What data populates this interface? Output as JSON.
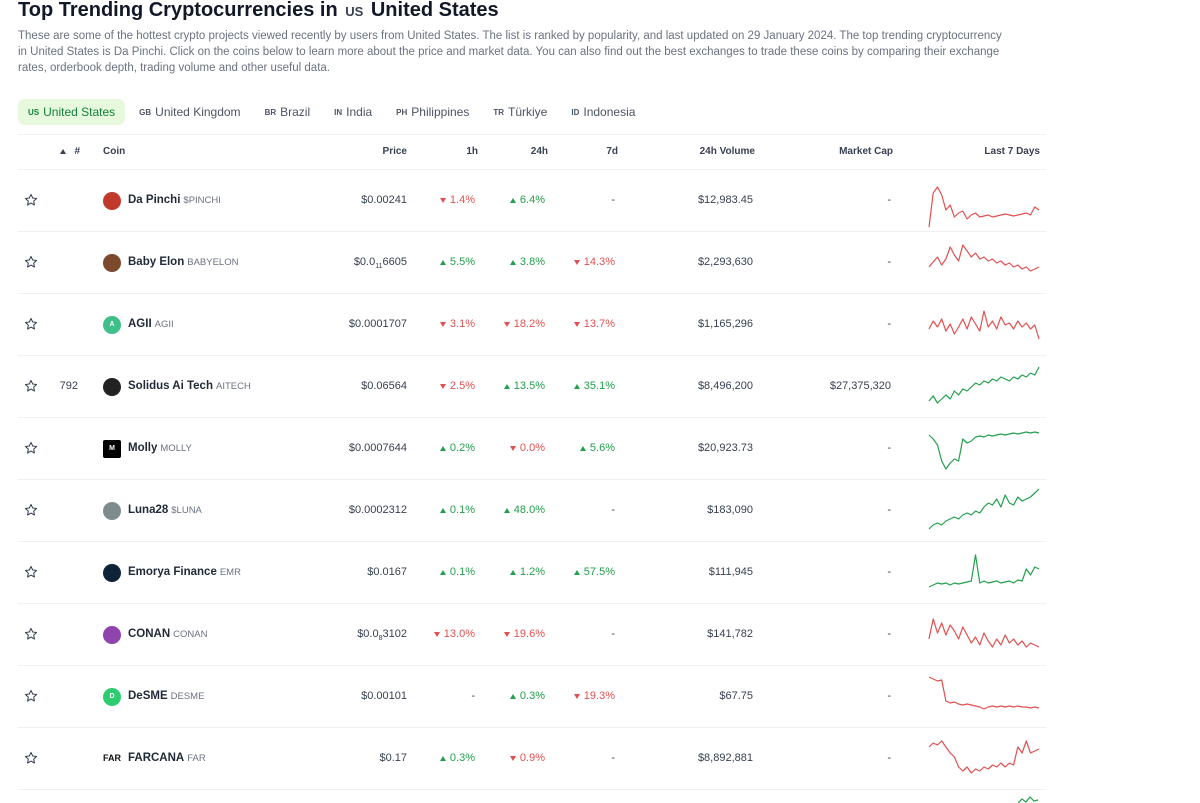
{
  "header": {
    "title_prefix": "Top Trending Cryptocurrencies in",
    "title_flag": "US",
    "title_country": "United States",
    "description": "These are some of the hottest crypto projects viewed recently by users from United States. The list is ranked by popularity, and last updated on 29 January 2024. The top trending cryptocurrency in United States is Da Pinchi. Click on the coins below to learn more about the price and market data. You can also find out the best exchanges to trade these coins by comparing their exchange rates, orderbook depth, trading volume and other useful data."
  },
  "tabs": [
    {
      "code": "US",
      "label": "United States",
      "active": true
    },
    {
      "code": "GB",
      "label": "United Kingdom",
      "active": false
    },
    {
      "code": "BR",
      "label": "Brazil",
      "active": false
    },
    {
      "code": "IN",
      "label": "India",
      "active": false
    },
    {
      "code": "PH",
      "label": "Philippines",
      "active": false
    },
    {
      "code": "TR",
      "label": "Türkiye",
      "active": false
    },
    {
      "code": "ID",
      "label": "Indonesia",
      "active": false
    }
  ],
  "columns": {
    "rank": "#",
    "coin": "Coin",
    "price": "Price",
    "h1": "1h",
    "h24": "24h",
    "d7": "7d",
    "volume": "24h Volume",
    "mcap": "Market Cap",
    "spark": "Last 7 Days"
  },
  "colors": {
    "positive": "#22a04b",
    "negative": "#e25050",
    "active_tab_bg": "#e6f9dc"
  },
  "rows": [
    {
      "rank": "",
      "name": "Da Pinchi",
      "symbol": "$PINCHI",
      "logo_color": "#c0392b",
      "logo_text": "",
      "price": "$0.00241",
      "h1": "1.4%",
      "h1_dir": "neg",
      "h24": "6.4%",
      "h24_dir": "pos",
      "d7": "-",
      "d7_dir": "none",
      "volume": "$12,983.45",
      "mcap": "-",
      "trend": "neg",
      "spark": [
        52,
        18,
        12,
        20,
        35,
        30,
        42,
        38,
        36,
        44,
        40,
        38,
        42,
        41,
        40,
        42,
        41,
        40,
        39,
        40,
        41,
        40,
        39,
        38,
        40,
        32,
        35
      ]
    },
    {
      "rank": "",
      "name": "Baby Elon",
      "symbol": "BABYELON",
      "logo_color": "#7a4a2a",
      "logo_text": "",
      "price_parts": [
        "$0.0",
        "11",
        "6605"
      ],
      "h1": "5.5%",
      "h1_dir": "pos",
      "h24": "3.8%",
      "h24_dir": "pos",
      "d7": "14.3%",
      "d7_dir": "neg",
      "volume": "$2,293,630",
      "mcap": "-",
      "trend": "neg",
      "spark": [
        30,
        25,
        20,
        28,
        22,
        10,
        18,
        24,
        8,
        14,
        20,
        16,
        22,
        20,
        24,
        22,
        26,
        24,
        28,
        26,
        30,
        28,
        32,
        30,
        34,
        32,
        30
      ]
    },
    {
      "rank": "",
      "name": "AGII",
      "symbol": "AGII",
      "logo_color": "#3fbf8a",
      "logo_text": "A",
      "price": "$0.0001707",
      "h1": "3.1%",
      "h1_dir": "neg",
      "h24": "18.2%",
      "h24_dir": "neg",
      "d7": "13.7%",
      "d7_dir": "neg",
      "volume": "$1,165,296",
      "mcap": "-",
      "trend": "neg",
      "spark": [
        30,
        22,
        28,
        20,
        32,
        25,
        35,
        28,
        20,
        30,
        18,
        25,
        32,
        12,
        28,
        22,
        30,
        18,
        26,
        24,
        30,
        22,
        28,
        24,
        30,
        26,
        40
      ]
    },
    {
      "rank": "792",
      "name": "Solidus Ai Tech",
      "symbol": "AITECH",
      "logo_color": "#222222",
      "logo_text": "",
      "price": "$0.06564",
      "h1": "2.5%",
      "h1_dir": "neg",
      "h24": "13.5%",
      "h24_dir": "pos",
      "d7": "35.1%",
      "d7_dir": "pos",
      "volume": "$8,496,200",
      "mcap": "$27,375,320",
      "trend": "pos",
      "spark": [
        40,
        35,
        42,
        38,
        34,
        38,
        30,
        34,
        28,
        30,
        26,
        22,
        24,
        20,
        22,
        18,
        20,
        16,
        18,
        20,
        16,
        18,
        14,
        16,
        12,
        14,
        6
      ]
    },
    {
      "rank": "",
      "name": "Molly",
      "symbol": "MOLLY",
      "logo_color": "#000000",
      "logo_text": "M",
      "price": "$0.0007644",
      "h1": "0.2%",
      "h1_dir": "pos",
      "h24": "0.0%",
      "h24_dir": "neg",
      "d7": "5.6%",
      "d7_dir": "pos",
      "volume": "$20,923.73",
      "mcap": "-",
      "trend": "pos",
      "spark": [
        12,
        16,
        22,
        38,
        46,
        40,
        36,
        38,
        16,
        20,
        18,
        14,
        13,
        14,
        12,
        13,
        12,
        11,
        12,
        11,
        10,
        11,
        10,
        9,
        10,
        9,
        10
      ]
    },
    {
      "rank": "",
      "name": "Luna28",
      "symbol": "$LUNA",
      "logo_color": "#7f8c8d",
      "logo_text": "",
      "price": "$0.0002312",
      "h1": "0.1%",
      "h1_dir": "pos",
      "h24": "48.0%",
      "h24_dir": "pos",
      "d7": "-",
      "d7_dir": "none",
      "volume": "$183,090",
      "mcap": "-",
      "trend": "pos",
      "spark": [
        44,
        40,
        38,
        40,
        36,
        34,
        32,
        34,
        30,
        28,
        30,
        26,
        28,
        22,
        18,
        20,
        14,
        22,
        10,
        18,
        20,
        12,
        16,
        14,
        12,
        8,
        4
      ]
    },
    {
      "rank": "",
      "name": "Emorya Finance",
      "symbol": "EMR",
      "logo_color": "#0f2338",
      "logo_text": "",
      "price": "$0.0167",
      "h1": "0.1%",
      "h1_dir": "pos",
      "h24": "1.2%",
      "h24_dir": "pos",
      "d7": "57.5%",
      "d7_dir": "pos",
      "volume": "$111,945",
      "mcap": "-",
      "trend": "pos",
      "spark": [
        40,
        38,
        36,
        37,
        36,
        38,
        36,
        37,
        36,
        35,
        34,
        8,
        36,
        34,
        36,
        35,
        34,
        36,
        35,
        34,
        36,
        33,
        34,
        22,
        28,
        20,
        22
      ]
    },
    {
      "rank": "",
      "name": "CONAN",
      "symbol": "CONAN",
      "logo_color": "#8e44ad",
      "logo_text": "",
      "price_parts": [
        "$0.0",
        "8",
        "3102"
      ],
      "h1": "13.0%",
      "h1_dir": "neg",
      "h24": "19.6%",
      "h24_dir": "neg",
      "d7": "-",
      "d7_dir": "none",
      "volume": "$141,782",
      "mcap": "-",
      "trend": "neg",
      "spark": [
        30,
        10,
        24,
        14,
        26,
        16,
        22,
        30,
        18,
        26,
        34,
        28,
        36,
        24,
        32,
        38,
        30,
        36,
        26,
        34,
        30,
        36,
        32,
        38,
        34,
        36,
        38
      ]
    },
    {
      "rank": "",
      "name": "DeSME",
      "symbol": "DESME",
      "logo_color": "#2ecc71",
      "logo_text": "D",
      "price": "$0.00101",
      "h1": "-",
      "h1_dir": "none",
      "h24": "0.3%",
      "h24_dir": "pos",
      "d7": "19.3%",
      "d7_dir": "neg",
      "volume": "$67.75",
      "mcap": "-",
      "trend": "neg",
      "spark": [
        6,
        8,
        10,
        9,
        30,
        32,
        31,
        33,
        34,
        33,
        34,
        35,
        36,
        38,
        36,
        35,
        36,
        35,
        36,
        35,
        36,
        35,
        36,
        36,
        37,
        36,
        37
      ]
    },
    {
      "rank": "",
      "name": "FARCANA",
      "symbol": "FAR",
      "logo_color": "#111111",
      "logo_text": "FAR",
      "price": "$0.17",
      "h1": "0.3%",
      "h1_dir": "pos",
      "h24": "0.9%",
      "h24_dir": "neg",
      "d7": "-",
      "d7_dir": "none",
      "volume": "$8,892,881",
      "mcap": "-",
      "trend": "neg",
      "spark": [
        14,
        10,
        12,
        8,
        14,
        20,
        24,
        34,
        38,
        34,
        40,
        36,
        38,
        34,
        36,
        32,
        34,
        30,
        34,
        30,
        32,
        14,
        20,
        8,
        20,
        18,
        16
      ]
    }
  ]
}
